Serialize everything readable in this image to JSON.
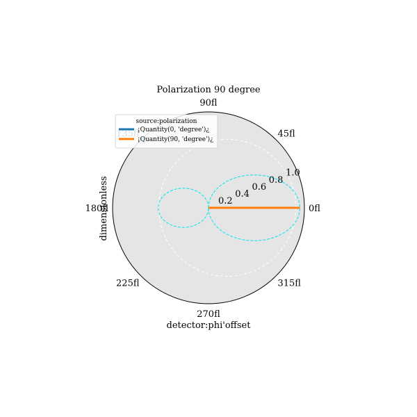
{
  "chart_data": {
    "type": "polar-line",
    "title": "Polarization 90 degree",
    "xlabel": "detector:phi'offset",
    "ylabel": "dimensionless",
    "angle_unit": "degree",
    "theta_ticks": [
      {
        "value": 0,
        "label": "0fl"
      },
      {
        "value": 45,
        "label": "45fl"
      },
      {
        "value": 90,
        "label": "90fl"
      },
      {
        "value": 135,
        "label": "135fl"
      },
      {
        "value": 180,
        "label": "180fl"
      },
      {
        "value": 225,
        "label": "225fl"
      },
      {
        "value": 270,
        "label": "270fl"
      },
      {
        "value": 315,
        "label": "315fl"
      }
    ],
    "r_ticks": [
      {
        "value": 0.2,
        "label": "0.2"
      },
      {
        "value": 0.4,
        "label": "0.4"
      },
      {
        "value": 0.6,
        "label": "0.6"
      },
      {
        "value": 0.8,
        "label": "0.8"
      },
      {
        "value": 1.0,
        "label": "1.0"
      }
    ],
    "rlim": [
      0,
      1.05
    ],
    "r_label_angle": 22.5,
    "legend": {
      "title": "source:polarization",
      "placement": "upper-left",
      "entries": [
        {
          "label": "¡Quantity(0, 'degree')¿",
          "color": "#1f77b4"
        },
        {
          "label": "¡Quantity(90, 'degree')¿",
          "color": "#ff7f0e"
        }
      ]
    },
    "series": [
      {
        "name": "¡Quantity(0, 'degree')¿",
        "color": "#1f77b4",
        "style": "solid",
        "theta": [
          0,
          0
        ],
        "r": [
          0,
          1.0
        ]
      },
      {
        "name": "¡Quantity(90, 'degree')¿",
        "color": "#ff7f0e",
        "style": "solid",
        "theta": [
          0,
          0
        ],
        "r": [
          0,
          1.0
        ]
      },
      {
        "color": "#00e5ee",
        "style": "dashed",
        "function": "r = (1 + cos(theta))/2 - 0.5*sin(theta)^2 ... approximated by limacon",
        "a": 0.5,
        "b": 0.5,
        "inner_scale": 0.55
      }
    ],
    "reference_circle": {
      "r": 0.75,
      "style": "dashed",
      "color": "#ffffff"
    },
    "grid": true,
    "background": "#e5e5e5"
  }
}
